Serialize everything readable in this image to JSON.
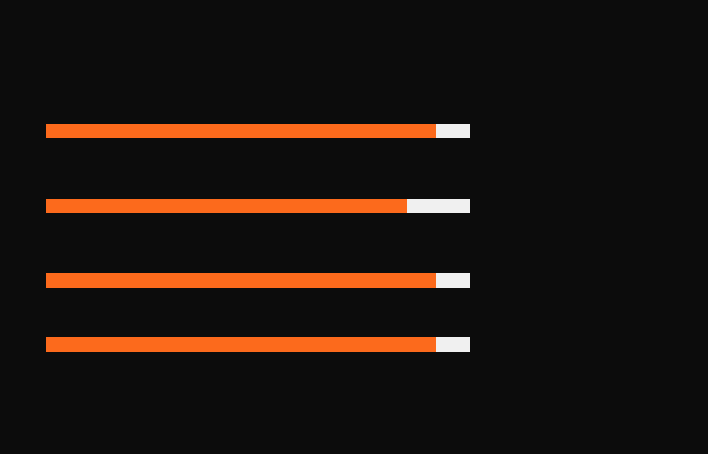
{
  "colors": {
    "background": "#0c0c0c",
    "fill": "#fc6a1c",
    "track": "#f0f0f0"
  },
  "progress_bars": [
    {
      "value": 0.92
    },
    {
      "value": 0.85
    },
    {
      "value": 0.92
    },
    {
      "value": 0.92
    }
  ]
}
